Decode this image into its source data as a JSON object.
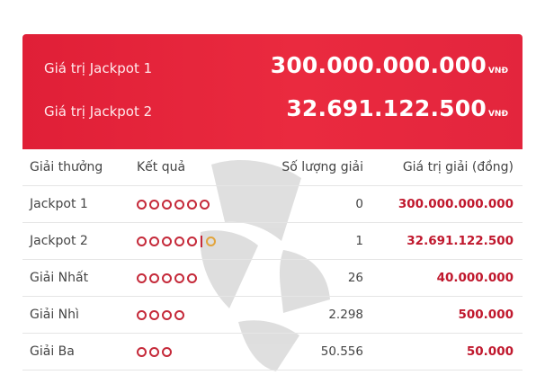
{
  "jackpots": [
    {
      "label": "Giá trị Jackpot 1",
      "value": "300.000.000.000",
      "currency": "VNĐ"
    },
    {
      "label": "Giá trị Jackpot 2",
      "value": "32.691.122.500",
      "currency": "VNĐ"
    }
  ],
  "table": {
    "headers": {
      "prize": "Giải thưởng",
      "result": "Kết quả",
      "count": "Số lượng giải",
      "value": "Giá trị giải (đồng)"
    },
    "rows": [
      {
        "prize": "Jackpot 1",
        "count": "0",
        "value": "300.000.000.000",
        "result_icon": "six-red-circles"
      },
      {
        "prize": "Jackpot 2",
        "count": "1",
        "value": "32.691.122.500",
        "result_icon": "five-red-circles-bar-gold-circle"
      },
      {
        "prize": "Giải Nhất",
        "count": "26",
        "value": "40.000.000",
        "result_icon": "five-red-circles"
      },
      {
        "prize": "Giải Nhì",
        "count": "2.298",
        "value": "500.000",
        "result_icon": "four-red-circles"
      },
      {
        "prize": "Giải Ba",
        "count": "50.556",
        "value": "50.000",
        "result_icon": "three-red-circles"
      }
    ]
  },
  "colors": {
    "banner": "#e3253d",
    "prize_value": "#c0182d",
    "ball_red": "#c52a3a",
    "ball_gold": "#e2a43b"
  }
}
